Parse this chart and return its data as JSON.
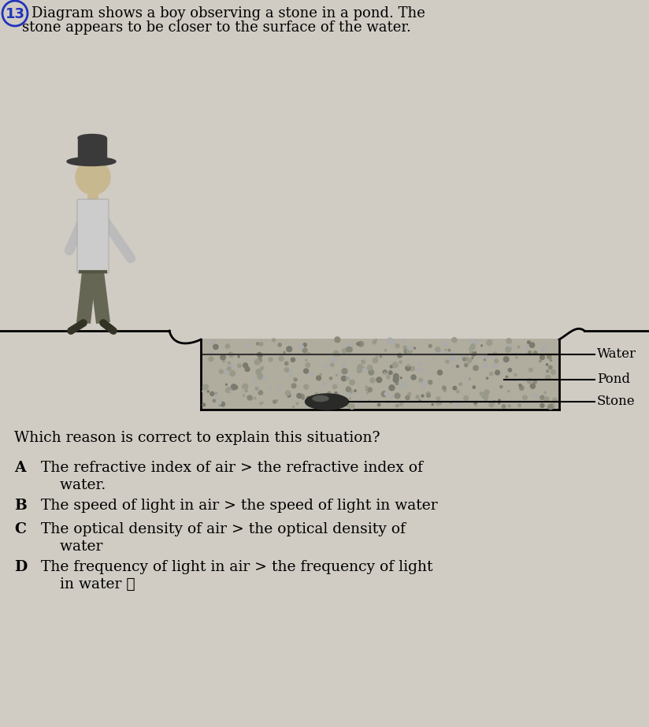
{
  "background_color": "#d0ccc4",
  "title_number": "13",
  "question": "Which reason is correct to explain this situation?",
  "options": [
    {
      "label": "A",
      "text": "The refractive index of air > the refractive index of\n    water."
    },
    {
      "label": "B",
      "text": "The speed of light in air > the speed of light in water"
    },
    {
      "label": "C",
      "text": "The optical density of air > the optical density of\n    water"
    },
    {
      "label": "D",
      "text": "The frequency of light in air > the frequency of light\n    in water ℓ"
    }
  ],
  "pond_fill_color": "#b0ac9e",
  "pond_texture_colors": [
    "#888878",
    "#999988",
    "#7a7a6e",
    "#aaaaaa",
    "#9a9a8a"
  ],
  "stone_color": "#2a2a28",
  "ground_color": "#888878",
  "boy_hat_color": "#3a3a3a",
  "boy_skin_color": "#c8b890",
  "boy_shirt_color": "#aaaaaa",
  "boy_pants_color": "#666655",
  "water_label": "Water",
  "pond_label": "Pond",
  "stone_label": "Stone",
  "font_size_title": 13,
  "font_size_options": 13.5,
  "font_size_question": 13.5,
  "font_size_labels": 12
}
